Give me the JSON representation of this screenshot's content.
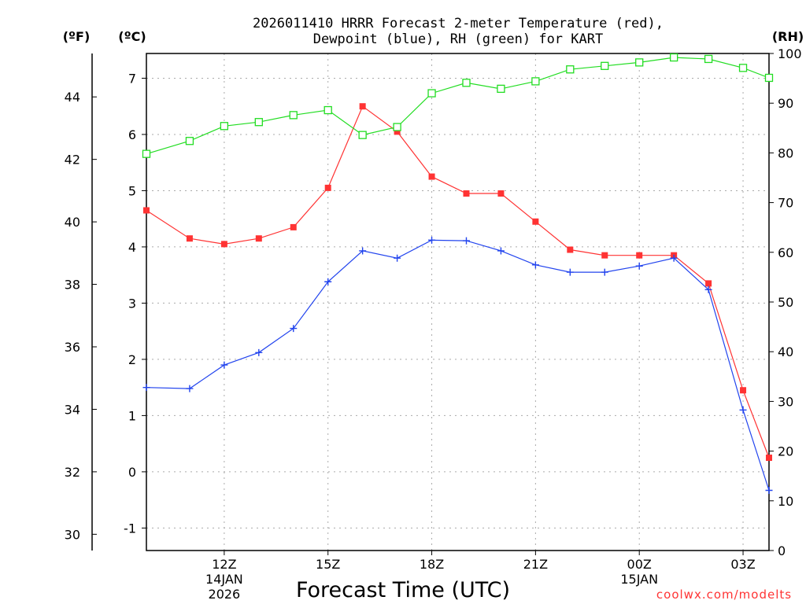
{
  "chart_data": {
    "type": "line",
    "title_line1": "2026011410 HRRR Forecast 2-meter Temperature (red),",
    "title_line2": "Dewpoint (blue), RH (green) for KART",
    "xlabel": "Forecast Time (UTC)",
    "credit": "coolwx.com/modelts",
    "units": {
      "fahrenheit": "(ºF)",
      "celsius": "(ºC)",
      "rh": "(RH)"
    },
    "x_hours_range": [
      9.75,
      27.75
    ],
    "x_ticks": [
      {
        "hour": 12,
        "label": "12Z",
        "sub1": "14JAN",
        "sub2": "2026"
      },
      {
        "hour": 15,
        "label": "15Z",
        "sub1": "",
        "sub2": ""
      },
      {
        "hour": 18,
        "label": "18Z",
        "sub1": "",
        "sub2": ""
      },
      {
        "hour": 21,
        "label": "21Z",
        "sub1": "",
        "sub2": ""
      },
      {
        "hour": 24,
        "label": "00Z",
        "sub1": "15JAN",
        "sub2": ""
      },
      {
        "hour": 27,
        "label": "03Z",
        "sub1": "",
        "sub2": ""
      }
    ],
    "x_grid_hours": [
      12,
      15,
      18,
      21,
      24,
      27
    ],
    "celsius_axis": {
      "range": [
        -1.4,
        7.44
      ],
      "ticks": [
        "-1",
        "0",
        "1",
        "2",
        "3",
        "4",
        "5",
        "6",
        "7"
      ]
    },
    "fahrenheit_axis": {
      "range": [
        29.48,
        45.39
      ],
      "ticks": [
        "30",
        "32",
        "34",
        "36",
        "38",
        "40",
        "42",
        "44"
      ]
    },
    "rh_axis": {
      "range": [
        0,
        100
      ],
      "ticks": [
        "0",
        "10",
        "20",
        "30",
        "40",
        "50",
        "60",
        "70",
        "80",
        "90",
        "100"
      ]
    },
    "series": [
      {
        "name": "Temperature",
        "unit": "C",
        "color": "#ff3333",
        "marker": "filled-square",
        "x": [
          9.75,
          11,
          12,
          13,
          14,
          15,
          16,
          17,
          18,
          19,
          20,
          21,
          22,
          23,
          24,
          25,
          26,
          27,
          27.75
        ],
        "values": [
          4.65,
          4.15,
          4.05,
          4.15,
          4.35,
          5.05,
          6.5,
          6.05,
          5.25,
          4.95,
          4.95,
          4.45,
          3.95,
          3.85,
          3.85,
          3.85,
          3.35,
          1.45,
          0.25
        ]
      },
      {
        "name": "Dewpoint",
        "unit": "C",
        "color": "#2244ee",
        "marker": "plus",
        "x": [
          9.75,
          11,
          12,
          13,
          14,
          15,
          16,
          17,
          18,
          19,
          20,
          21,
          22,
          23,
          24,
          25,
          26,
          27,
          27.75
        ],
        "values": [
          1.5,
          1.48,
          1.9,
          2.12,
          2.55,
          3.38,
          3.93,
          3.8,
          4.12,
          4.11,
          3.93,
          3.68,
          3.55,
          3.55,
          3.66,
          3.8,
          3.24,
          1.1,
          -0.33
        ]
      },
      {
        "name": "RH",
        "unit": "%",
        "color": "#22dd22",
        "marker": "open-square",
        "x": [
          9.75,
          11,
          12,
          13,
          14,
          15,
          16,
          17,
          18,
          19,
          20,
          21,
          22,
          23,
          24,
          25,
          26,
          27,
          27.75
        ],
        "values": [
          79.8,
          82.4,
          85.4,
          86.2,
          87.6,
          88.6,
          83.6,
          85.2,
          92.0,
          94.1,
          92.9,
          94.4,
          96.8,
          97.5,
          98.2,
          99.2,
          98.9,
          97.1,
          95.1
        ]
      }
    ]
  }
}
